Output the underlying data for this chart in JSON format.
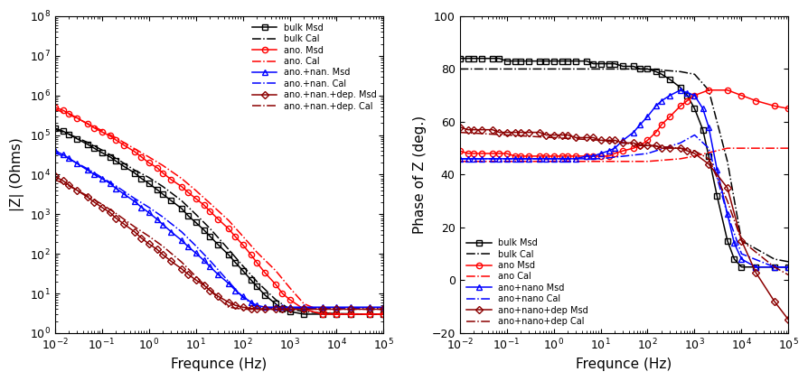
{
  "xlabel": "Frequnce (Hz)",
  "ylabel_left": "|Z| (Ohms)",
  "ylabel_right": "Phase of Z (deg.)",
  "legend_left": [
    "bulk Msd",
    "bulk Cal",
    "ano. Msd",
    "ano. Cal",
    "ano.+nan. Msd",
    "ano.+nan. Cal",
    "ano.+nan.+dep. Msd",
    "ano.+nan.+dep. Cal"
  ],
  "legend_right": [
    "bulk Msd",
    "bulk Cal",
    "ano Msd",
    "ano Cal",
    "ano+nano Msd",
    "ano+nano Cal",
    "ano+nano+dep Msd",
    "ano+nano+dep Cal"
  ],
  "series": {
    "bulk_msd_IZ": {
      "freq": [
        0.01,
        0.015,
        0.02,
        0.03,
        0.05,
        0.07,
        0.1,
        0.15,
        0.2,
        0.3,
        0.5,
        0.7,
        1,
        1.5,
        2,
        3,
        5,
        7,
        10,
        15,
        20,
        30,
        50,
        70,
        100,
        150,
        200,
        300,
        500,
        700,
        1000,
        2000,
        5000,
        10000,
        20000,
        50000,
        100000
      ],
      "val": [
        150000,
        125000,
        105000,
        80000,
        58000,
        46000,
        36000,
        28000,
        22000,
        16000,
        11000,
        8000,
        6000,
        4200,
        3200,
        2200,
        1400,
        900,
        620,
        400,
        280,
        170,
        95,
        60,
        38,
        22,
        15,
        9,
        5.5,
        4,
        3.5,
        3,
        3,
        3,
        3,
        3,
        3
      ],
      "color": "#000000",
      "marker": "s",
      "linestyle": "-",
      "label": "bulk Msd"
    },
    "bulk_cal_IZ": {
      "freq": [
        0.01,
        0.02,
        0.05,
        0.1,
        0.2,
        0.5,
        1,
        2,
        5,
        10,
        20,
        50,
        100,
        200,
        500,
        1000,
        2000,
        5000,
        10000,
        50000,
        100000
      ],
      "val": [
        140000,
        105000,
        65000,
        42000,
        26000,
        13000,
        8500,
        5000,
        2200,
        1000,
        440,
        130,
        50,
        20,
        7,
        4,
        3.5,
        3.2,
        3.1,
        3,
        3
      ],
      "color": "#000000",
      "marker": "None",
      "linestyle": "-.",
      "label": "bulk Cal"
    },
    "ano_msd_IZ": {
      "freq": [
        0.01,
        0.015,
        0.02,
        0.03,
        0.05,
        0.07,
        0.1,
        0.15,
        0.2,
        0.3,
        0.5,
        0.7,
        1,
        1.5,
        2,
        3,
        5,
        7,
        10,
        15,
        20,
        30,
        50,
        70,
        100,
        150,
        200,
        300,
        500,
        700,
        1000,
        2000,
        5000,
        10000,
        20000,
        50000,
        100000
      ],
      "val": [
        500000,
        420000,
        350000,
        270000,
        190000,
        150000,
        120000,
        95000,
        75000,
        55000,
        38000,
        28000,
        20000,
        15000,
        11000,
        7500,
        5000,
        3500,
        2500,
        1700,
        1200,
        750,
        430,
        270,
        170,
        95,
        60,
        33,
        17,
        10,
        7,
        4,
        3,
        3,
        3,
        3,
        3
      ],
      "color": "#FF0000",
      "marker": "o",
      "linestyle": "-",
      "label": "ano. Msd"
    },
    "ano_cal_IZ": {
      "freq": [
        0.01,
        0.02,
        0.05,
        0.1,
        0.2,
        0.5,
        1,
        2,
        5,
        10,
        20,
        50,
        100,
        200,
        500,
        1000,
        2000,
        5000,
        10000,
        50000,
        100000
      ],
      "val": [
        450000,
        330000,
        195000,
        130000,
        85000,
        45000,
        28000,
        17000,
        8000,
        4000,
        1900,
        700,
        280,
        110,
        38,
        14,
        5.5,
        3.5,
        3,
        3,
        3
      ],
      "color": "#FF0000",
      "marker": "None",
      "linestyle": "-.",
      "label": "ano. Cal"
    },
    "ano_nano_msd_IZ": {
      "freq": [
        0.01,
        0.015,
        0.02,
        0.03,
        0.05,
        0.07,
        0.1,
        0.15,
        0.2,
        0.3,
        0.5,
        0.7,
        1,
        1.5,
        2,
        3,
        5,
        7,
        10,
        15,
        20,
        30,
        50,
        70,
        100,
        150,
        200,
        300,
        500,
        700,
        1000,
        2000,
        5000,
        10000,
        20000,
        50000,
        100000
      ],
      "val": [
        40000,
        32000,
        26000,
        19000,
        13000,
        10000,
        8000,
        6000,
        4500,
        3200,
        2100,
        1500,
        1100,
        750,
        550,
        360,
        220,
        150,
        105,
        68,
        48,
        30,
        18,
        12,
        8.5,
        6,
        5,
        4.5,
        4.5,
        4.5,
        4.5,
        4.5,
        4.5,
        4.5,
        4.5,
        4.5,
        4.5
      ],
      "color": "#0000FF",
      "marker": "^",
      "linestyle": "-",
      "label": "ano.+nan. Msd"
    },
    "ano_nano_cal_IZ": {
      "freq": [
        0.01,
        0.02,
        0.05,
        0.1,
        0.2,
        0.5,
        1,
        2,
        5,
        10,
        20,
        50,
        100,
        200,
        500,
        1000,
        2000,
        5000,
        10000,
        50000,
        100000
      ],
      "val": [
        36000,
        25000,
        14000,
        8500,
        5200,
        2500,
        1500,
        850,
        360,
        160,
        68,
        20,
        8,
        4.5,
        4.2,
        4.2,
        4.2,
        4.2,
        4.2,
        4.2,
        4.2
      ],
      "color": "#0000FF",
      "marker": "None",
      "linestyle": "-.",
      "label": "ano.+nan. Cal"
    },
    "ano_nano_dep_msd_IZ": {
      "freq": [
        0.01,
        0.015,
        0.02,
        0.03,
        0.05,
        0.07,
        0.1,
        0.15,
        0.2,
        0.3,
        0.5,
        0.7,
        1,
        1.5,
        2,
        3,
        5,
        7,
        10,
        15,
        20,
        30,
        50,
        70,
        100,
        150,
        200,
        300,
        500,
        700,
        1000,
        2000,
        5000,
        10000,
        20000,
        50000,
        100000
      ],
      "val": [
        9000,
        7000,
        5500,
        4000,
        2700,
        2000,
        1500,
        1100,
        800,
        560,
        360,
        250,
        180,
        130,
        95,
        65,
        42,
        30,
        22,
        16,
        12,
        8.5,
        6,
        5,
        4.5,
        4.2,
        4,
        4,
        4,
        4,
        4,
        4,
        4,
        4,
        4,
        4,
        4
      ],
      "color": "#8B0000",
      "marker": "D",
      "linestyle": "-",
      "label": "ano.+nan.+dep. Msd"
    },
    "ano_nano_dep_cal_IZ": {
      "freq": [
        0.01,
        0.02,
        0.05,
        0.1,
        0.2,
        0.5,
        1,
        2,
        5,
        10,
        20,
        50,
        100,
        200,
        500,
        1000,
        2000,
        5000,
        10000,
        50000,
        100000
      ],
      "val": [
        7500,
        5200,
        2900,
        1800,
        1050,
        480,
        280,
        155,
        62,
        27,
        12,
        4.5,
        4,
        4,
        4,
        4,
        4,
        4,
        4,
        4,
        4
      ],
      "color": "#8B0000",
      "marker": "None",
      "linestyle": "-.",
      "label": "ano.+nan.+dep. Cal"
    },
    "bulk_msd_Ph": {
      "freq": [
        0.01,
        0.015,
        0.02,
        0.03,
        0.05,
        0.07,
        0.1,
        0.15,
        0.2,
        0.3,
        0.5,
        0.7,
        1,
        1.5,
        2,
        3,
        5,
        7,
        10,
        15,
        20,
        30,
        50,
        70,
        100,
        150,
        200,
        300,
        500,
        700,
        1000,
        1500,
        2000,
        3000,
        5000,
        7000,
        10000,
        20000,
        50000,
        100000
      ],
      "val": [
        84,
        84,
        84,
        84,
        84,
        84,
        83,
        83,
        83,
        83,
        83,
        83,
        83,
        83,
        83,
        83,
        83,
        82,
        82,
        82,
        82,
        81,
        81,
        80,
        80,
        79,
        78,
        76,
        73,
        70,
        65,
        57,
        47,
        32,
        15,
        8,
        5,
        5,
        5,
        5
      ],
      "color": "#000000",
      "marker": "s",
      "linestyle": "-",
      "label": "bulk Msd"
    },
    "bulk_cal_Ph": {
      "freq": [
        0.01,
        0.1,
        1,
        10,
        100,
        500,
        1000,
        2000,
        5000,
        10000,
        50000,
        100000
      ],
      "val": [
        80,
        80,
        80,
        80,
        80,
        79,
        78,
        72,
        45,
        15,
        8,
        7
      ],
      "color": "#000000",
      "marker": "None",
      "linestyle": "-.",
      "label": "bulk Cal"
    },
    "ano_msd_Ph": {
      "freq": [
        0.01,
        0.015,
        0.02,
        0.03,
        0.05,
        0.07,
        0.1,
        0.15,
        0.2,
        0.3,
        0.5,
        0.7,
        1,
        1.5,
        2,
        3,
        5,
        7,
        10,
        15,
        20,
        30,
        50,
        70,
        100,
        150,
        200,
        300,
        500,
        700,
        1000,
        2000,
        5000,
        10000,
        20000,
        50000,
        100000
      ],
      "val": [
        49,
        48,
        48,
        48,
        48,
        48,
        48,
        47,
        47,
        47,
        47,
        47,
        47,
        47,
        47,
        47,
        47,
        47,
        47,
        47,
        48,
        49,
        50,
        51,
        53,
        56,
        59,
        62,
        66,
        68,
        70,
        72,
        72,
        70,
        68,
        66,
        65
      ],
      "color": "#FF0000",
      "marker": "o",
      "linestyle": "-",
      "label": "ano Msd"
    },
    "ano_cal_Ph": {
      "freq": [
        0.01,
        0.1,
        1,
        10,
        100,
        500,
        1000,
        5000,
        10000,
        50000,
        100000
      ],
      "val": [
        45,
        45,
        45,
        45,
        45,
        46,
        47,
        50,
        50,
        50,
        50
      ],
      "color": "#FF0000",
      "marker": "None",
      "linestyle": "-.",
      "label": "ano Cal"
    },
    "ano_nano_msd_Ph": {
      "freq": [
        0.01,
        0.015,
        0.02,
        0.03,
        0.05,
        0.07,
        0.1,
        0.15,
        0.2,
        0.3,
        0.5,
        0.7,
        1,
        1.5,
        2,
        3,
        5,
        7,
        10,
        15,
        20,
        30,
        50,
        70,
        100,
        150,
        200,
        300,
        500,
        700,
        1000,
        1500,
        2000,
        3000,
        5000,
        7000,
        10000,
        20000,
        50000,
        100000
      ],
      "val": [
        46,
        46,
        46,
        46,
        46,
        46,
        46,
        46,
        46,
        46,
        46,
        46,
        46,
        46,
        46,
        46,
        47,
        47,
        48,
        49,
        50,
        53,
        56,
        59,
        62,
        66,
        68,
        70,
        72,
        71,
        70,
        65,
        58,
        42,
        25,
        14,
        8,
        5,
        5,
        5
      ],
      "color": "#0000FF",
      "marker": "^",
      "linestyle": "-",
      "label": "ano+nano Msd"
    },
    "ano_nano_cal_Ph": {
      "freq": [
        0.01,
        0.1,
        1,
        10,
        100,
        500,
        1000,
        2000,
        5000,
        10000,
        50000,
        100000
      ],
      "val": [
        46,
        46,
        46,
        46,
        48,
        52,
        55,
        50,
        25,
        10,
        5,
        5
      ],
      "color": "#0000FF",
      "marker": "None",
      "linestyle": "-.",
      "label": "ano+nano Cal"
    },
    "ano_nano_dep_msd_Ph": {
      "freq": [
        0.01,
        0.015,
        0.02,
        0.03,
        0.05,
        0.07,
        0.1,
        0.15,
        0.2,
        0.3,
        0.5,
        0.7,
        1,
        1.5,
        2,
        3,
        5,
        7,
        10,
        15,
        20,
        30,
        50,
        70,
        100,
        150,
        200,
        300,
        500,
        700,
        1000,
        2000,
        5000,
        10000,
        20000,
        50000,
        100000
      ],
      "val": [
        58,
        57,
        57,
        57,
        57,
        56,
        56,
        56,
        56,
        56,
        56,
        55,
        55,
        55,
        55,
        54,
        54,
        54,
        53,
        53,
        53,
        52,
        52,
        51,
        51,
        51,
        50,
        50,
        50,
        49,
        48,
        44,
        35,
        15,
        3,
        -8,
        -15
      ],
      "color": "#8B0000",
      "marker": "D",
      "linestyle": "-",
      "label": "ano+nano+dep Msd"
    },
    "ano_nano_dep_cal_Ph": {
      "freq": [
        0.01,
        0.1,
        1,
        10,
        100,
        500,
        1000,
        2000,
        5000,
        10000,
        50000,
        100000
      ],
      "val": [
        56,
        55,
        54,
        53,
        51,
        50,
        49,
        46,
        30,
        15,
        5,
        2
      ],
      "color": "#8B0000",
      "marker": "None",
      "linestyle": "-.",
      "label": "ano+nano+dep Cal"
    }
  }
}
